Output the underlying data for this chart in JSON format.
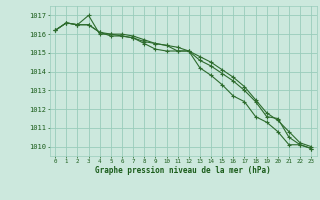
{
  "title": "Graphe pression niveau de la mer (hPa)",
  "bg_color": "#cce8dd",
  "grid_color": "#99ccbb",
  "line_color": "#2d6b2d",
  "text_color": "#1a5c1a",
  "x_values": [
    0,
    1,
    2,
    3,
    4,
    5,
    6,
    7,
    8,
    9,
    10,
    11,
    12,
    13,
    14,
    15,
    16,
    17,
    18,
    19,
    20,
    21,
    22,
    23
  ],
  "line1": [
    1016.2,
    1016.6,
    1016.5,
    1017.0,
    1016.0,
    1016.0,
    1015.9,
    1015.8,
    1015.6,
    1015.5,
    1015.4,
    1015.1,
    1015.1,
    1014.2,
    1013.8,
    1013.3,
    1012.7,
    1012.4,
    1011.6,
    1011.3,
    1010.8,
    1010.1,
    1010.1,
    1009.9
  ],
  "line2": [
    1016.2,
    1016.6,
    1016.5,
    1016.5,
    1016.1,
    1015.9,
    1015.9,
    1015.8,
    1015.5,
    1015.2,
    1015.1,
    1015.1,
    1015.1,
    1014.6,
    1014.3,
    1013.9,
    1013.5,
    1013.0,
    1012.4,
    1011.6,
    1011.5,
    1010.5,
    1010.1,
    1009.9
  ],
  "line3": [
    1016.2,
    1016.6,
    1016.5,
    1016.5,
    1016.1,
    1016.0,
    1016.0,
    1015.9,
    1015.7,
    1015.5,
    1015.4,
    1015.3,
    1015.1,
    1014.8,
    1014.5,
    1014.1,
    1013.7,
    1013.2,
    1012.5,
    1011.8,
    1011.4,
    1010.8,
    1010.2,
    1010.0
  ],
  "ylim": [
    1009.5,
    1017.5
  ],
  "yticks": [
    1010,
    1011,
    1012,
    1013,
    1014,
    1015,
    1016,
    1017
  ],
  "xlim": [
    -0.5,
    23.5
  ],
  "marker": "+",
  "markersize": 3.5,
  "linewidth": 0.8
}
